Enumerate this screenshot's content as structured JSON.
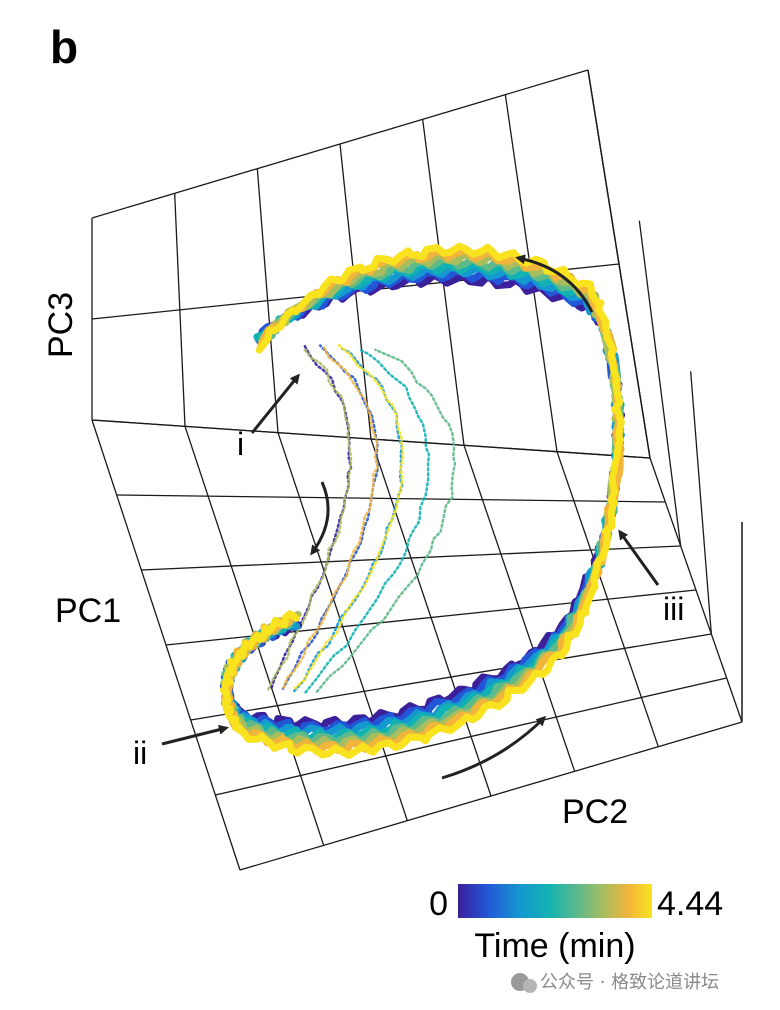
{
  "panel_label": "b",
  "chart_data": {
    "type": "line",
    "subtype": "3d-trajectory",
    "axes": {
      "x_label": "PC1",
      "y_label": "PC2",
      "z_label": "PC3"
    },
    "grid": true,
    "colorbar": {
      "label": "Time (min)",
      "min": 0,
      "max": 4.44,
      "min_text": "0",
      "max_text": "4.44",
      "colormap": [
        "#3b1f9b",
        "#2356d6",
        "#1597d0",
        "#13b2b2",
        "#5fba8a",
        "#a8bd5e",
        "#f2b53c",
        "#f9e21e"
      ]
    },
    "annotations": [
      {
        "id": "i",
        "text": "i"
      },
      {
        "id": "ii",
        "text": "ii"
      },
      {
        "id": "iii",
        "text": "iii"
      }
    ],
    "series": [
      {
        "color": "#3b1f9b",
        "time_min": 0.0
      },
      {
        "color": "#2356d6",
        "time_min": 0.6
      },
      {
        "color": "#1597d0",
        "time_min": 1.2
      },
      {
        "color": "#13b2b2",
        "time_min": 1.8
      },
      {
        "color": "#5fba8a",
        "time_min": 2.4
      },
      {
        "color": "#a8bd5e",
        "time_min": 3.0
      },
      {
        "color": "#f2b53c",
        "time_min": 3.7
      },
      {
        "color": "#f9e21e",
        "time_min": 4.44
      }
    ]
  },
  "watermark": "公众号 · 格致论道讲坛"
}
